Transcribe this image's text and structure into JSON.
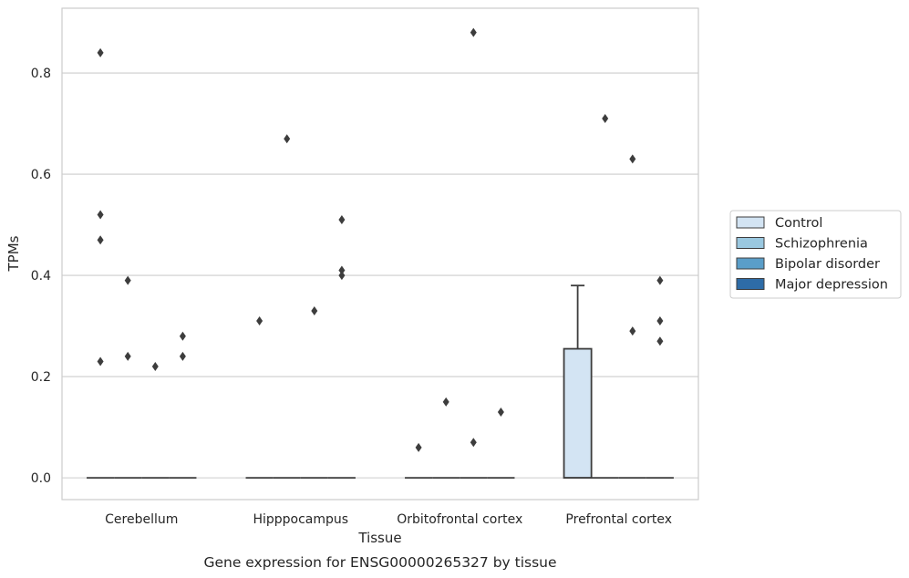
{
  "chart_data": {
    "type": "box",
    "xlabel": "Tissue",
    "ylabel": "TPMs",
    "caption": "Gene expression for ENSG00000265327 by tissue",
    "categories": [
      "Cerebellum",
      "Hipppocampus",
      "Orbitofrontal cortex",
      "Prefrontal cortex"
    ],
    "ylim": [
      -0.043,
      0.928
    ],
    "yticks": [
      0.0,
      0.2,
      0.4,
      0.6,
      0.8
    ],
    "ytick_labels": [
      "0.0",
      "0.2",
      "0.4",
      "0.6",
      "0.8"
    ],
    "grid": "horizontal",
    "legend_position": "center-right-outside",
    "series": [
      {
        "name": "Control",
        "color": "#d3e4f3",
        "boxes": [
          {
            "q1": 0,
            "median": 0,
            "q3": 0,
            "whisker_low": 0,
            "whisker_high": 0,
            "outliers": [
              0.84,
              0.52,
              0.47,
              0.23
            ]
          },
          {
            "q1": 0,
            "median": 0,
            "q3": 0,
            "whisker_low": 0,
            "whisker_high": 0,
            "outliers": [
              0.31
            ]
          },
          {
            "q1": 0,
            "median": 0,
            "q3": 0,
            "whisker_low": 0,
            "whisker_high": 0,
            "outliers": [
              0.06
            ]
          },
          {
            "q1": 0,
            "median": 0,
            "q3": 0.255,
            "whisker_low": 0,
            "whisker_high": 0.38,
            "outliers": []
          }
        ]
      },
      {
        "name": "Schizophrenia",
        "color": "#9ac8e0",
        "boxes": [
          {
            "q1": 0,
            "median": 0,
            "q3": 0,
            "whisker_low": 0,
            "whisker_high": 0,
            "outliers": [
              0.39,
              0.24
            ]
          },
          {
            "q1": 0,
            "median": 0,
            "q3": 0,
            "whisker_low": 0,
            "whisker_high": 0,
            "outliers": [
              0.67
            ]
          },
          {
            "q1": 0,
            "median": 0,
            "q3": 0,
            "whisker_low": 0,
            "whisker_high": 0,
            "outliers": [
              0.15
            ]
          },
          {
            "q1": 0,
            "median": 0,
            "q3": 0,
            "whisker_low": 0,
            "whisker_high": 0,
            "outliers": [
              0.71
            ]
          }
        ]
      },
      {
        "name": "Bipolar disorder",
        "color": "#5a9ec9",
        "boxes": [
          {
            "q1": 0,
            "median": 0,
            "q3": 0,
            "whisker_low": 0,
            "whisker_high": 0,
            "outliers": [
              0.22
            ]
          },
          {
            "q1": 0,
            "median": 0,
            "q3": 0,
            "whisker_low": 0,
            "whisker_high": 0,
            "outliers": [
              0.33
            ]
          },
          {
            "q1": 0,
            "median": 0,
            "q3": 0,
            "whisker_low": 0,
            "whisker_high": 0,
            "outliers": [
              0.88,
              0.07
            ]
          },
          {
            "q1": 0,
            "median": 0,
            "q3": 0,
            "whisker_low": 0,
            "whisker_high": 0,
            "outliers": [
              0.63,
              0.29
            ]
          }
        ]
      },
      {
        "name": "Major depression",
        "color": "#2e6ca7",
        "boxes": [
          {
            "q1": 0,
            "median": 0,
            "q3": 0,
            "whisker_low": 0,
            "whisker_high": 0,
            "outliers": [
              0.28,
              0.24
            ]
          },
          {
            "q1": 0,
            "median": 0,
            "q3": 0,
            "whisker_low": 0,
            "whisker_high": 0,
            "outliers": [
              0.51,
              0.41,
              0.4
            ]
          },
          {
            "q1": 0,
            "median": 0,
            "q3": 0,
            "whisker_low": 0,
            "whisker_high": 0,
            "outliers": [
              0.13
            ]
          },
          {
            "q1": 0,
            "median": 0,
            "q3": 0,
            "whisker_low": 0,
            "whisker_high": 0,
            "outliers": [
              0.39,
              0.31,
              0.27
            ]
          }
        ]
      }
    ],
    "colors": {
      "grid": "#cccccc",
      "frame": "#cccccc",
      "box_edge": "#3d3d3d",
      "outlier": "#3d3d3d"
    }
  }
}
